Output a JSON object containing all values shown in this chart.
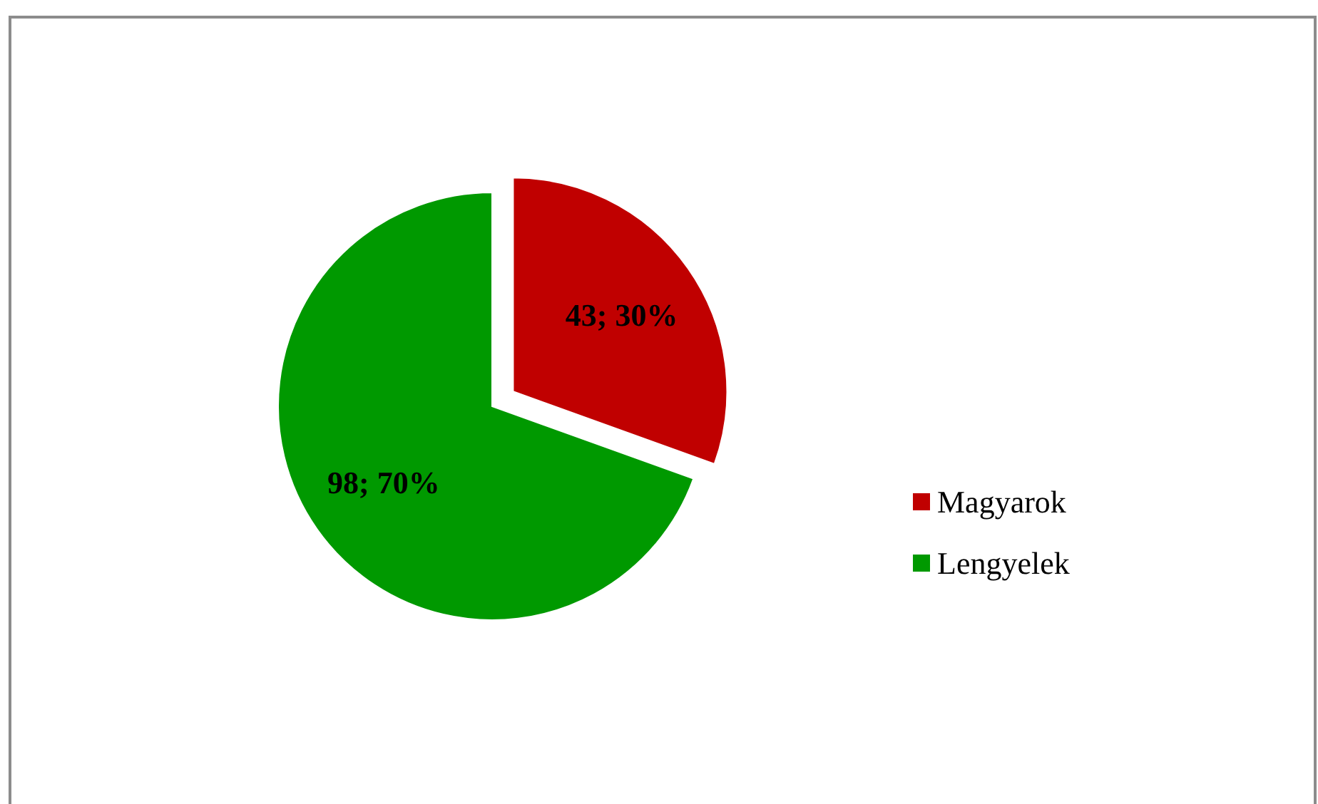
{
  "chart_data": {
    "type": "pie",
    "categories": [
      "Magyarok",
      "Lengyelek"
    ],
    "values": [
      43,
      98
    ],
    "colors": [
      "#c00000",
      "#009900"
    ],
    "value_labels": [
      "43; 30%",
      "98; 70%"
    ],
    "legend": "right"
  }
}
